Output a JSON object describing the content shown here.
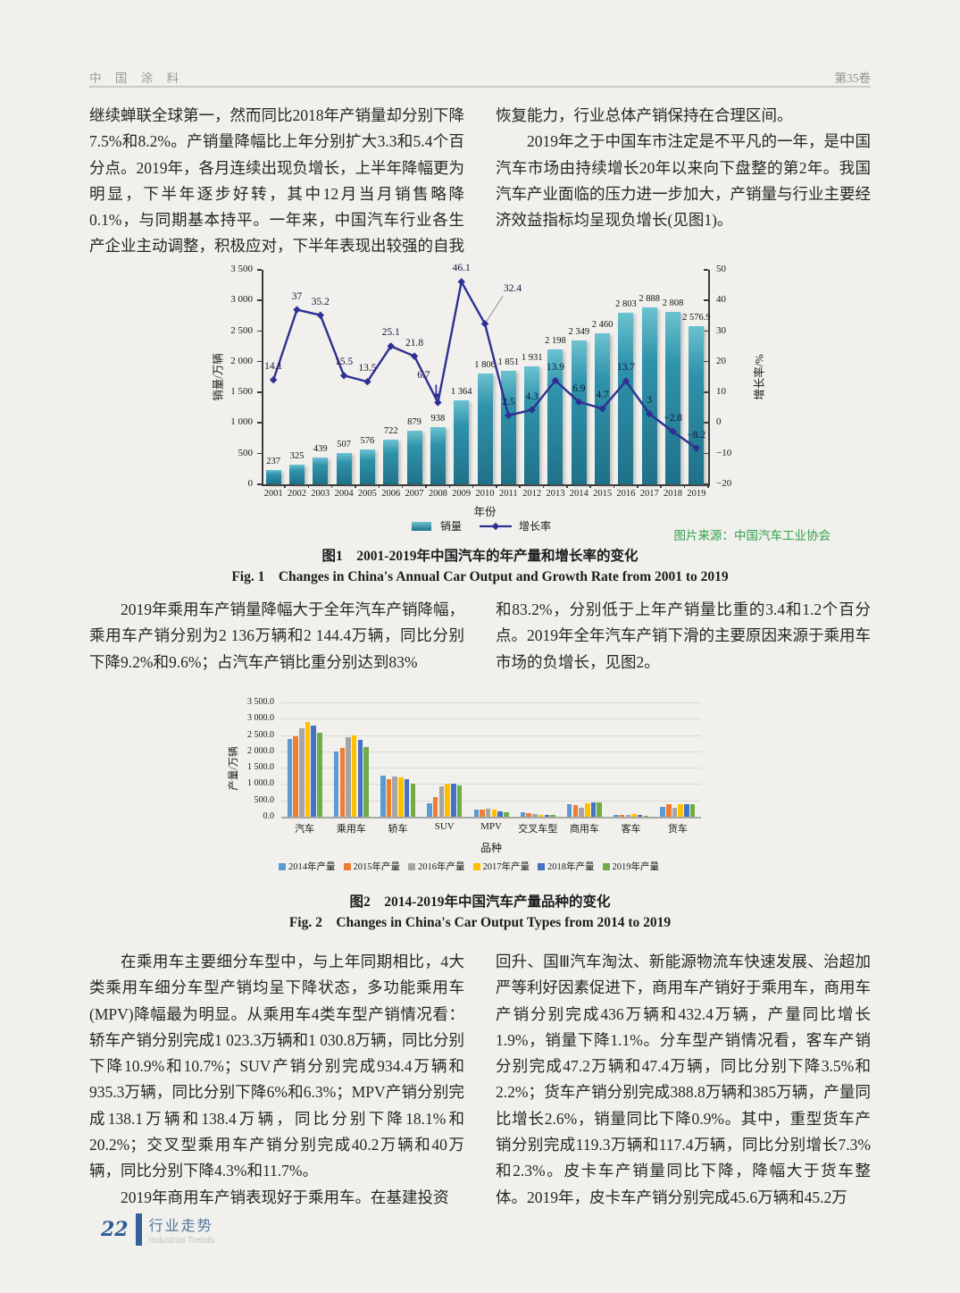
{
  "header": {
    "journal": "中 国 涂 料",
    "volume": "第35卷"
  },
  "intro": {
    "col1": [
      "继续蝉联全球第一，然而同比2018年产销量却分别下降7.5%和8.2%。产销量降幅比上年分别扩大3.3和5.4个百分点。2019年，各月连续出现负增长，上半年降幅更为明显，下半年逐步好转，其中12月当月销售略降0.1%，与同期基本持平。一年来，中国汽车行业各生产企业主动调整，积极应对，下半年表现出较强的自我"
    ],
    "col2": [
      "恢复能力，行业总体产销保持在合理区间。",
      "2019年之于中国车市注定是不平凡的一年，是中国汽车市场由持续增长20年以来向下盘整的第2年。我国汽车产业面临的压力进一步加大，产销量与行业主要经济效益指标均呈现负增长(见图1)。"
    ]
  },
  "figure1": {
    "source": "图片来源：中国汽车工业协会",
    "caption_zh": "图1　2001-2019年中国汽车的年产量和增长率的变化",
    "caption_en": "Fig. 1　Changes in China's Annual Car Output and Growth Rate from 2001 to 2019"
  },
  "mid": {
    "col1": [
      "2019年乘用车产销量降幅大于全年汽车产销降幅，乘用车产销分别为2 136万辆和2 144.4万辆，同比分别下降9.2%和9.6%；占汽车产销比重分别达到83%"
    ],
    "col2": [
      "和83.2%，分别低于上年产销量比重的3.4和1.2个百分点。2019年全年汽车产销下滑的主要原因来源于乘用车市场的负增长，见图2。"
    ]
  },
  "figure2": {
    "caption_zh": "图2　2014-2019年中国汽车产量品种的变化",
    "caption_en": "Fig. 2　Changes in China's Car Output Types from 2014 to 2019"
  },
  "bottom": {
    "col1": [
      "在乘用车主要细分车型中，与上年同期相比，4大类乘用车细分车型产销均呈下降状态，多功能乘用车(MPV)降幅最为明显。从乘用车4类车型产销情况看：轿车产销分别完成1 023.3万辆和1 030.8万辆，同比分别下降10.9%和10.7%；SUV产销分别完成934.4万辆和935.3万辆，同比分别下降6%和6.3%；MPV产销分别完成138.1万辆和138.4万辆，同比分别下降18.1%和20.2%；交叉型乘用车产销分别完成40.2万辆和40万辆，同比分别下降4.3%和11.7%。",
      "2019年商用车产销表现好于乘用车。在基建投资"
    ],
    "col2": [
      "回升、国Ⅲ汽车淘汰、新能源物流车快速发展、治超加严等利好因素促进下，商用车产销好于乘用车，商用车产销分别完成436万辆和432.4万辆，产量同比增长1.9%，销量下降1.1%。分车型产销情况看，客车产销分别完成47.2万辆和47.4万辆，同比分别下降3.5%和2.2%；货车产销分别完成388.8万辆和385万辆，产量同比增长2.6%，销量同比下降0.9%。其中，重型货车产销分别完成119.3万辆和117.4万辆，同比分别增长7.3%和2.3%。皮卡车产销量同比下降，降幅大于货车整体。2019年，皮卡车产销分别完成45.6万辆和45.2万"
    ]
  },
  "footer": {
    "page_number": "22",
    "section_zh": "行业走势",
    "section_en": "Industrial Trends"
  },
  "chart_data": [
    {
      "type": "bar",
      "subtype": "combo-bar-line",
      "title": "",
      "x": [
        "2001",
        "2002",
        "2003",
        "2004",
        "2005",
        "2006",
        "2007",
        "2008",
        "2009",
        "2010",
        "2011",
        "2012",
        "2013",
        "2014",
        "2015",
        "2016",
        "2017",
        "2018",
        "2019"
      ],
      "xlabel": "年份",
      "ylabel_left": "销量/万辆",
      "ylim_left": [
        0,
        3500
      ],
      "yticks_left": [
        "0",
        "500",
        "1 000",
        "1 500",
        "2 000",
        "2 500",
        "3 000",
        "3 500"
      ],
      "ylabel_right": "增长率/%",
      "ylim_right": [
        -20,
        50
      ],
      "yticks_right": [
        "−20",
        "−10",
        "0",
        "10",
        "20",
        "30",
        "40",
        "50"
      ],
      "grid": false,
      "legend_position": "bottom",
      "source": "图片来源：中国汽车工业协会",
      "series": [
        {
          "name": "销量",
          "type": "bar",
          "axis": "left",
          "color": "#2b89a2",
          "values": [
            237,
            325,
            439,
            507,
            576,
            722,
            879,
            938,
            1364,
            1806,
            1851,
            1931,
            2198,
            2349,
            2460,
            2803,
            2888,
            2808,
            2576.9
          ],
          "labels": [
            "237",
            "325",
            "439",
            "507",
            "576",
            "722",
            "879",
            "938",
            "1 364",
            "1 806",
            "1 851",
            "1 931",
            "2 198",
            "2 349",
            "2 460",
            "2 803",
            "2 888",
            "2 808",
            "2 576.9"
          ]
        },
        {
          "name": "增长率",
          "type": "line",
          "axis": "right",
          "color": "#2d3092",
          "values": [
            14.1,
            37,
            35.2,
            15.5,
            13.5,
            25.1,
            21.8,
            6.7,
            46.1,
            32.4,
            2.5,
            4.3,
            13.9,
            6.9,
            4.7,
            13.7,
            3,
            -2.8,
            -8.2
          ],
          "labels": [
            "14.1",
            "37",
            "35.2",
            "15.5",
            "13.5",
            "25.1",
            "21.8",
            "6.7",
            "46.1",
            "32.4",
            "2.5",
            "4.3",
            "13.9",
            "6.9",
            "4.7",
            "13.7",
            "3",
            "−2.8",
            "−8.2"
          ]
        }
      ]
    },
    {
      "type": "bar",
      "categories": [
        "汽车",
        "乘用车",
        "轿车",
        "SUV",
        "MPV",
        "交叉车型",
        "商用车",
        "客车",
        "货车"
      ],
      "xlabel": "品种",
      "ylabel": "产量/万辆",
      "ylim": [
        0,
        3500
      ],
      "yticks": [
        "0.0",
        "500.0",
        "1 000.0",
        "1 500.0",
        "2 000.0",
        "2 500.0",
        "3 000.0",
        "3 500.0"
      ],
      "grid": true,
      "legend_position": "bottom",
      "series": [
        {
          "name": "2014年产量",
          "color": "#5b9bd5",
          "values": [
            2380,
            2000,
            1270,
            410,
            215,
            135,
            375,
            60,
            310
          ]
        },
        {
          "name": "2015年产量",
          "color": "#ed7d31",
          "values": [
            2450,
            2110,
            1140,
            615,
            220,
            115,
            345,
            50,
            395
          ]
        },
        {
          "name": "2016年产量",
          "color": "#a5a5a5",
          "values": [
            2720,
            2440,
            1220,
            920,
            255,
            70,
            275,
            45,
            265
          ]
        },
        {
          "name": "2017年产量",
          "color": "#ffc000",
          "values": [
            2890,
            2490,
            1190,
            1005,
            230,
            60,
            420,
            75,
            390
          ]
        },
        {
          "name": "2018年产量",
          "color": "#4472c4",
          "values": [
            2790,
            2350,
            1150,
            1000,
            175,
            50,
            450,
            45,
            395
          ]
        },
        {
          "name": "2019年产量",
          "color": "#70ad47",
          "values": [
            2570,
            2140,
            1020,
            950,
            140,
            45,
            440,
            40,
            385
          ]
        }
      ]
    }
  ]
}
